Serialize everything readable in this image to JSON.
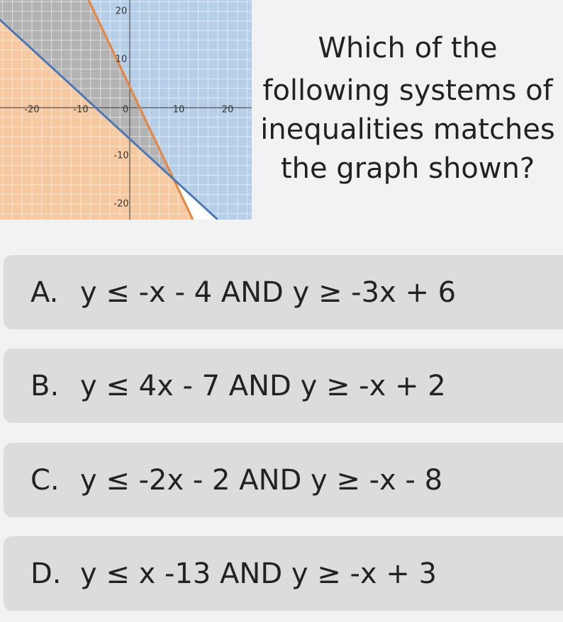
{
  "graph": {
    "x_labels": [
      -20,
      -10,
      0,
      10,
      20
    ],
    "y_labels": [
      20,
      10,
      -10,
      -20
    ]
  },
  "question": {
    "lines": [
      "Which of the",
      "following systems of",
      "inequalities matches",
      "the graph shown?"
    ]
  },
  "options": [
    {
      "letter": "A.",
      "text": "y ≤ -x - 4 AND y ≥ -3x + 6"
    },
    {
      "letter": "B.",
      "text": "y ≤ 4x - 7 AND y ≥ -x + 2"
    },
    {
      "letter": "C.",
      "text": "y ≤ -2x - 2 AND y ≥ -x - 8"
    },
    {
      "letter": "D.",
      "text": "y ≤ x -13 AND y ≥ -x + 3"
    }
  ]
}
